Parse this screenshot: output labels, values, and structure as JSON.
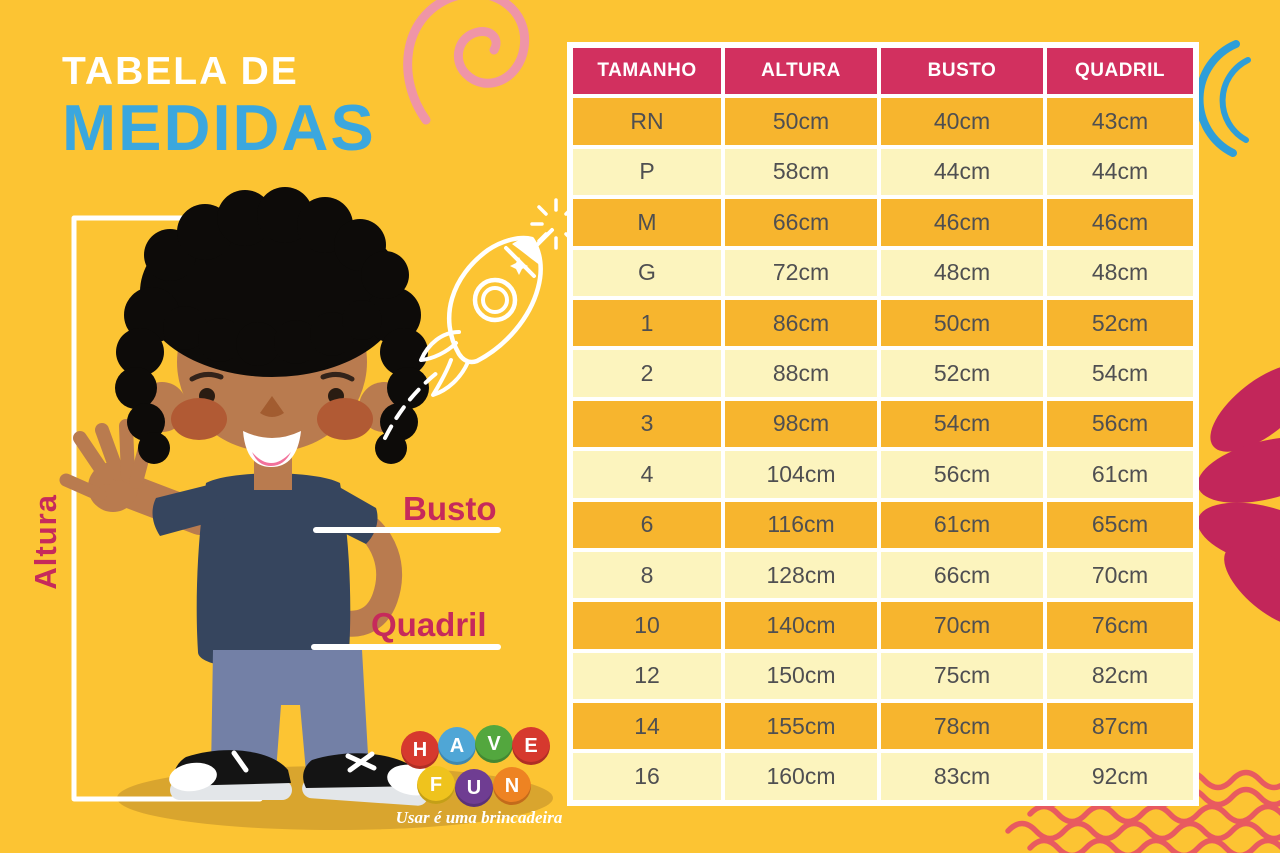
{
  "title": {
    "line1": "TABELA DE",
    "line2": "MEDIDAS"
  },
  "figure": {
    "height_label": "Altura",
    "bust_label": "Busto",
    "hip_label": "Quadril"
  },
  "logo": {
    "balls": [
      {
        "letter": "H",
        "color": "#D6392E"
      },
      {
        "letter": "A",
        "color": "#4FA6D6"
      },
      {
        "letter": "V",
        "color": "#53A73E"
      },
      {
        "letter": "E",
        "color": "#D6392E"
      },
      {
        "letter": "F",
        "color": "#EFC31D"
      },
      {
        "letter": "U",
        "color": "#6F3D92"
      },
      {
        "letter": "N",
        "color": "#EE8322"
      }
    ],
    "tagline": "Usar é uma brincadeira"
  },
  "chart_data": {
    "type": "table",
    "title": "Tabela de Medidas",
    "columns": [
      "TAMANHO",
      "ALTURA",
      "BUSTO",
      "QUADRIL"
    ],
    "rows": [
      [
        "RN",
        "50cm",
        "40cm",
        "43cm"
      ],
      [
        "P",
        "58cm",
        "44cm",
        "44cm"
      ],
      [
        "M",
        "66cm",
        "46cm",
        "46cm"
      ],
      [
        "G",
        "72cm",
        "48cm",
        "48cm"
      ],
      [
        "1",
        "86cm",
        "50cm",
        "52cm"
      ],
      [
        "2",
        "88cm",
        "52cm",
        "54cm"
      ],
      [
        "3",
        "98cm",
        "54cm",
        "56cm"
      ],
      [
        "4",
        "104cm",
        "56cm",
        "61cm"
      ],
      [
        "6",
        "116cm",
        "61cm",
        "65cm"
      ],
      [
        "8",
        "128cm",
        "66cm",
        "70cm"
      ],
      [
        "10",
        "140cm",
        "70cm",
        "76cm"
      ],
      [
        "12",
        "150cm",
        "75cm",
        "82cm"
      ],
      [
        "14",
        "155cm",
        "78cm",
        "87cm"
      ],
      [
        "16",
        "160cm",
        "83cm",
        "92cm"
      ]
    ],
    "layout": {
      "header_style": "magenta band, white text",
      "row_striping": "alternating amber / pale yellow starting amber"
    }
  },
  "colors": {
    "background": "#FCC433",
    "table_header": "#D2305F",
    "row_dark": "#F7B52E",
    "row_light": "#FCF4BE",
    "table_text": "#4F4F51",
    "accent_crimson": "#C62A5B",
    "accent_blue": "#3BA7DE",
    "doodle_blue": "#2E9ED9",
    "wave_red": "#E85A60",
    "spiral_pink": "#EF95A7",
    "flower_magenta": "#C2265A",
    "skin": "#B97B4F",
    "hair": "#0D0B09",
    "shirt_navy": "#36455E",
    "pants_slate": "#7380A6",
    "ground_shadow": "#D9A52E",
    "blush": "#B15A34",
    "mouth_pink": "#F2729B"
  }
}
